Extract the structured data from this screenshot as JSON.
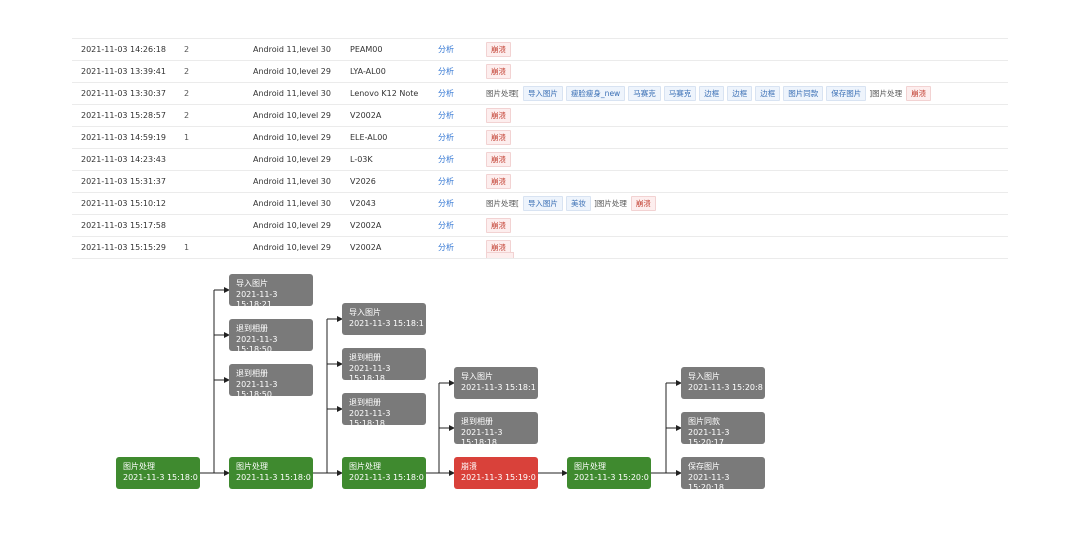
{
  "table": {
    "link_label": "分析",
    "rows": [
      {
        "time": "2021-11-03 14:26:18",
        "user": "2",
        "os": "Android 11,level 30",
        "model": "PEAM00",
        "tags": [
          {
            "text": "崩溃",
            "kind": "crash"
          }
        ]
      },
      {
        "time": "2021-11-03 13:39:41",
        "user": "2",
        "os": "Android 10,level 29",
        "model": "LYA-AL00",
        "tags": [
          {
            "text": "崩溃",
            "kind": "crash"
          }
        ]
      },
      {
        "time": "2021-11-03 13:30:37",
        "user": "2",
        "os": "Android 11,level 30",
        "model": "Lenovo K12 Note",
        "tags": [
          {
            "text": "图片处理[",
            "kind": "plain"
          },
          {
            "text": "导入图片",
            "kind": "tag"
          },
          {
            "text": "瘦脸瘦身_new",
            "kind": "tag"
          },
          {
            "text": "马赛克",
            "kind": "tag"
          },
          {
            "text": "马赛克",
            "kind": "tag"
          },
          {
            "text": "边框",
            "kind": "tag"
          },
          {
            "text": "边框",
            "kind": "tag"
          },
          {
            "text": "边框",
            "kind": "tag"
          },
          {
            "text": "图片同款",
            "kind": "tag"
          },
          {
            "text": "保存图片",
            "kind": "tag"
          },
          {
            "text": "]图片处理",
            "kind": "plain"
          },
          {
            "text": "崩溃",
            "kind": "crash"
          }
        ]
      },
      {
        "time": "2021-11-03 15:28:57",
        "user": "2",
        "os": "Android 10,level 29",
        "model": "V2002A",
        "tags": [
          {
            "text": "崩溃",
            "kind": "crash"
          }
        ]
      },
      {
        "time": "2021-11-03 14:59:19",
        "user": "1",
        "os": "Android 10,level 29",
        "model": "ELE-AL00",
        "tags": [
          {
            "text": "崩溃",
            "kind": "crash"
          }
        ]
      },
      {
        "time": "2021-11-03 14:23:43",
        "user": "",
        "os": "Android 10,level 29",
        "model": "L-03K",
        "tags": [
          {
            "text": "崩溃",
            "kind": "crash"
          }
        ]
      },
      {
        "time": "2021-11-03 15:31:37",
        "user": "",
        "os": "Android 11,level 30",
        "model": "V2026",
        "tags": [
          {
            "text": "崩溃",
            "kind": "crash"
          }
        ]
      },
      {
        "time": "2021-11-03 15:10:12",
        "user": "",
        "os": "Android 11,level 30",
        "model": "V2043",
        "tags": [
          {
            "text": "图片处理[",
            "kind": "plain"
          },
          {
            "text": "导入图片",
            "kind": "tag"
          },
          {
            "text": "美妆",
            "kind": "tag"
          },
          {
            "text": "]图片处理",
            "kind": "plain"
          },
          {
            "text": "崩溃",
            "kind": "crash"
          }
        ]
      },
      {
        "time": "2021-11-03 15:17:58",
        "user": "",
        "os": "Android 10,level 29",
        "model": "V2002A",
        "tags": [
          {
            "text": "崩溃",
            "kind": "crash"
          }
        ]
      },
      {
        "time": "2021-11-03 15:15:29",
        "user": "1",
        "os": "Android 10,level 29",
        "model": "V2002A",
        "tags": [
          {
            "text": "崩溃",
            "kind": "crash"
          }
        ]
      }
    ]
  },
  "flow": {
    "nodes": [
      {
        "id": "n1",
        "label": "图片处理",
        "time": "2021-11-3 15:18:0",
        "color": "green"
      },
      {
        "id": "n2",
        "label": "导入图片",
        "time": "2021-11-3 15:18:21",
        "color": "gray"
      },
      {
        "id": "n3",
        "label": "退到相册",
        "time": "2021-11-3 15:18:50",
        "color": "gray"
      },
      {
        "id": "n4",
        "label": "退到相册",
        "time": "2021-11-3 15:18:50",
        "color": "gray"
      },
      {
        "id": "n5",
        "label": "图片处理",
        "time": "2021-11-3 15:18:0",
        "color": "green"
      },
      {
        "id": "n6",
        "label": "导入图片",
        "time": "2021-11-3 15:18:1",
        "color": "gray"
      },
      {
        "id": "n7",
        "label": "退到相册",
        "time": "2021-11-3 15:18:18",
        "color": "gray"
      },
      {
        "id": "n8",
        "label": "退到相册",
        "time": "2021-11-3 15:18:18",
        "color": "gray"
      },
      {
        "id": "n9",
        "label": "图片处理",
        "time": "2021-11-3 15:18:0",
        "color": "green"
      },
      {
        "id": "n10",
        "label": "导入图片",
        "time": "2021-11-3 15:18:1",
        "color": "gray"
      },
      {
        "id": "n11",
        "label": "退到相册",
        "time": "2021-11-3 15:18:18",
        "color": "gray"
      },
      {
        "id": "n12",
        "label": "崩溃",
        "time": "2021-11-3 15:19:0",
        "color": "red"
      },
      {
        "id": "n13",
        "label": "图片处理",
        "time": "2021-11-3 15:20:0",
        "color": "green"
      },
      {
        "id": "n14",
        "label": "导入图片",
        "time": "2021-11-3 15:20:8",
        "color": "gray"
      },
      {
        "id": "n15",
        "label": "图片同款",
        "time": "2021-11-3 15:20:17",
        "color": "gray"
      },
      {
        "id": "n16",
        "label": "保存图片",
        "time": "2021-11-3 15:20:18",
        "color": "gray"
      }
    ]
  }
}
